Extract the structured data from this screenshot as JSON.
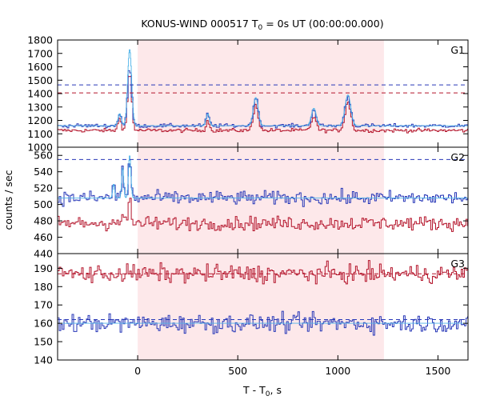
{
  "chart_data": {
    "type": "line",
    "title_main": "KONUS-WIND 000517 T",
    "title_sub": "0",
    "title_rest": " = 0s UT (00:00:00.000)",
    "ylabel": "counts / sec",
    "xlabel_main": "T - T",
    "xlabel_sub": "0",
    "xlabel_rest": ", s",
    "xlim": [
      -400,
      1650
    ],
    "xticks": [
      0,
      500,
      1000,
      1500
    ],
    "shaded_interval": [
      0,
      1230
    ],
    "colors": {
      "red": "#b4142b",
      "blue": "#2838b8",
      "cyan": "#4fb3e8",
      "shade": "#fde8ea"
    },
    "panels": [
      {
        "name": "G1",
        "ylim": [
          1000,
          1800
        ],
        "yticks": [
          1000,
          1100,
          1200,
          1300,
          1400,
          1500,
          1600,
          1700,
          1800
        ],
        "blue_base": 1160,
        "red_base": 1125,
        "cyan_base": 1160,
        "blue_noise": 10,
        "red_noise": 10,
        "cyan_noise": 0,
        "blue_dashed": 1465,
        "red_dashed": 1405,
        "peaks": [
          {
            "t": -40,
            "blue": 1590,
            "red": 1560,
            "cyan": 1730,
            "width": 10
          },
          {
            "t": -90,
            "blue": 1250,
            "red": 1220,
            "cyan": 1250,
            "width": 8
          },
          {
            "t": 350,
            "blue": 1250,
            "red": 1200,
            "cyan": 1250,
            "width": 8
          },
          {
            "t": 590,
            "blue": 1370,
            "red": 1320,
            "cyan": 1370,
            "width": 12
          },
          {
            "t": 880,
            "blue": 1280,
            "red": 1230,
            "cyan": 1290,
            "width": 12
          },
          {
            "t": 1050,
            "blue": 1380,
            "red": 1340,
            "cyan": 1390,
            "width": 14
          }
        ]
      },
      {
        "name": "G2",
        "ylim": [
          440,
          570
        ],
        "yticks": [
          440,
          460,
          480,
          500,
          520,
          540,
          560
        ],
        "blue_base": 508,
        "red_base": 477,
        "cyan_base": 508,
        "blue_noise": 6,
        "red_noise": 6,
        "cyan_noise": 0,
        "blue_dashed": 555,
        "red_dashed": null,
        "peaks": [
          {
            "t": -40,
            "blue": 560,
            "red": 510,
            "cyan": 560,
            "width": 6
          },
          {
            "t": -75,
            "blue": 545,
            "red": 490,
            "cyan": 545,
            "width": 5
          },
          {
            "t": -120,
            "blue": 530,
            "red": 485,
            "cyan": 525,
            "width": 5
          }
        ]
      },
      {
        "name": "G3",
        "ylim": [
          140,
          198
        ],
        "yticks": [
          140,
          150,
          160,
          170,
          180,
          190
        ],
        "blue_base": 160,
        "red_base": 187,
        "cyan_base": 160,
        "blue_noise": 3.5,
        "red_noise": 3.5,
        "cyan_noise": 0,
        "blue_dashed": 162,
        "red_dashed": 187,
        "peaks": []
      }
    ]
  }
}
